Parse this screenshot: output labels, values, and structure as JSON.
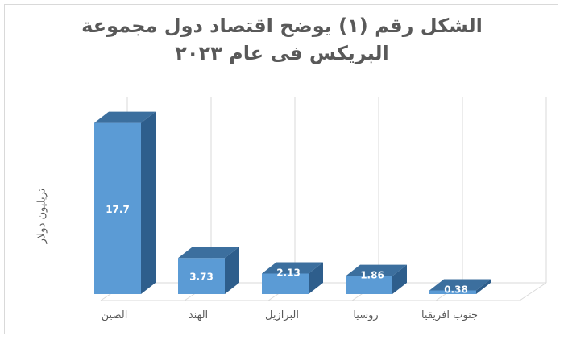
{
  "chart_data": {
    "type": "bar",
    "title": "الشكل رقم (١) يوضح اقتصاد دول مجموعة البريكس فى عام ٢٠٢٣",
    "title_lines": [
      "الشكل رقم (١) يوضح اقتصاد دول مجموعة",
      "البريكس فى عام ٢٠٢٣"
    ],
    "xlabel": "",
    "ylabel": "تريليون دولار",
    "categories": [
      "الصين",
      "الهند",
      "البرازيل",
      "روسيا",
      "جنوب افريقيا"
    ],
    "values": [
      17.7,
      3.73,
      2.13,
      1.86,
      0.38
    ],
    "data_labels": [
      "17.7",
      "3.73",
      "2.13",
      "1.86",
      "0.38"
    ],
    "ylim": [
      0,
      20
    ],
    "grid": true,
    "legend": "none",
    "style": "3d-column",
    "colors": {
      "bar_front": "#5b9bd5",
      "bar_side": "#2e5e8c",
      "bar_top": "#3c6f9e",
      "label": "#ffffff",
      "grid": "#d9d9d9",
      "text": "#595959"
    }
  }
}
